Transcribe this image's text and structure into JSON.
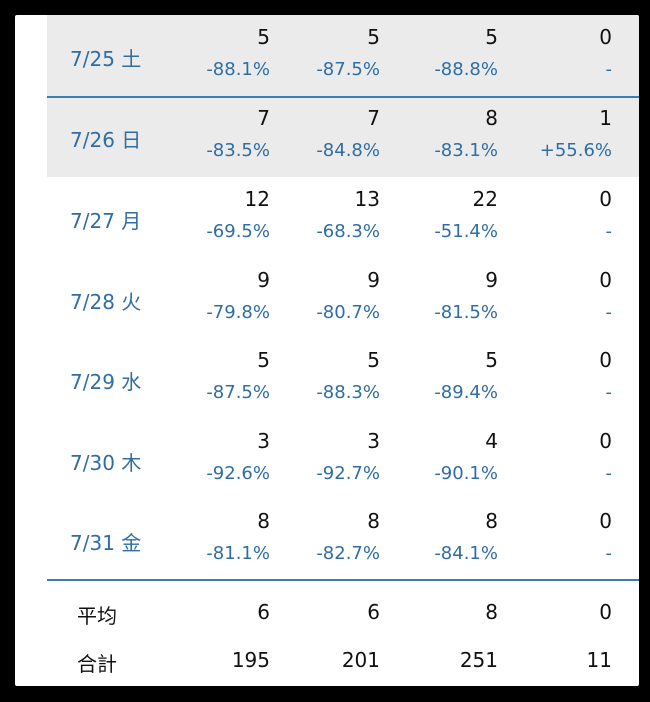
{
  "rows": [
    {
      "date": "7/25 土",
      "weekend": true,
      "cols": [
        {
          "n": "5",
          "p": "-88.1%"
        },
        {
          "n": "5",
          "p": "-87.5%"
        },
        {
          "n": "5",
          "p": "-88.8%"
        },
        {
          "n": "0",
          "p": "-"
        }
      ]
    },
    {
      "date": "7/26 日",
      "weekend": true,
      "cols": [
        {
          "n": "7",
          "p": "-83.5%"
        },
        {
          "n": "7",
          "p": "-84.8%"
        },
        {
          "n": "8",
          "p": "-83.1%"
        },
        {
          "n": "1",
          "p": "+55.6%"
        }
      ]
    },
    {
      "date": "7/27 月",
      "weekend": false,
      "cols": [
        {
          "n": "12",
          "p": "-69.5%"
        },
        {
          "n": "13",
          "p": "-68.3%"
        },
        {
          "n": "22",
          "p": "-51.4%"
        },
        {
          "n": "0",
          "p": "-"
        }
      ]
    },
    {
      "date": "7/28 火",
      "weekend": false,
      "cols": [
        {
          "n": "9",
          "p": "-79.8%"
        },
        {
          "n": "9",
          "p": "-80.7%"
        },
        {
          "n": "9",
          "p": "-81.5%"
        },
        {
          "n": "0",
          "p": "-"
        }
      ]
    },
    {
      "date": "7/29 水",
      "weekend": false,
      "cols": [
        {
          "n": "5",
          "p": "-87.5%"
        },
        {
          "n": "5",
          "p": "-88.3%"
        },
        {
          "n": "5",
          "p": "-89.4%"
        },
        {
          "n": "0",
          "p": "-"
        }
      ]
    },
    {
      "date": "7/30 木",
      "weekend": false,
      "cols": [
        {
          "n": "3",
          "p": "-92.6%"
        },
        {
          "n": "3",
          "p": "-92.7%"
        },
        {
          "n": "4",
          "p": "-90.1%"
        },
        {
          "n": "0",
          "p": "-"
        }
      ]
    },
    {
      "date": "7/31 金",
      "weekend": false,
      "cols": [
        {
          "n": "8",
          "p": "-81.1%"
        },
        {
          "n": "8",
          "p": "-82.7%"
        },
        {
          "n": "8",
          "p": "-84.1%"
        },
        {
          "n": "0",
          "p": "-"
        }
      ]
    }
  ],
  "summary": {
    "average": {
      "label": "平均",
      "values": [
        "6",
        "6",
        "8",
        "0"
      ]
    },
    "total": {
      "label": "合計",
      "values": [
        "195",
        "201",
        "251",
        "11"
      ]
    }
  },
  "colors": {
    "accent": "#2f6da4",
    "weekend_bg": "#ebebeb",
    "divider": "#3a7eb2"
  }
}
